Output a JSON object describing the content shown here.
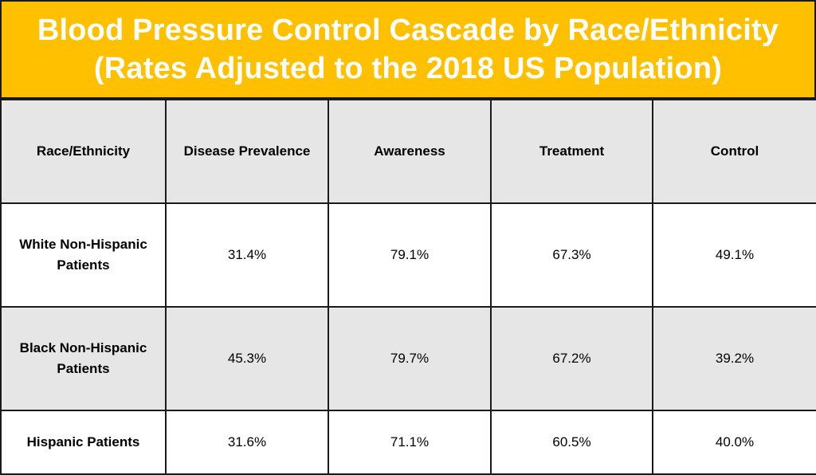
{
  "title": {
    "line1": "Blood Pressure Control Cascade by Race/Ethnicity",
    "line2": "(Rates Adjusted to the 2018 US Population)"
  },
  "colors": {
    "title_background": "#FFC000",
    "title_text": "#FFFFFF",
    "shaded_row": "#E6E6E6",
    "border": "#1A1A1A"
  },
  "table": {
    "columns": [
      "Race/Ethnicity",
      "Disease Prevalence",
      "Awareness",
      "Treatment",
      "Control"
    ],
    "rows": [
      {
        "group_line1": "White Non-Hispanic",
        "group_line2": "Patients",
        "prevalence": "31.4%",
        "awareness": "79.1%",
        "treatment": "67.3%",
        "control": "49.1%"
      },
      {
        "group_line1": "Black Non-Hispanic",
        "group_line2": "Patients",
        "prevalence": "45.3%",
        "awareness": "79.7%",
        "treatment": "67.2%",
        "control": "39.2%"
      },
      {
        "group_line1": "Hispanic Patients",
        "group_line2": "",
        "prevalence": "31.6%",
        "awareness": "71.1%",
        "treatment": "60.5%",
        "control": "40.0%"
      }
    ]
  }
}
